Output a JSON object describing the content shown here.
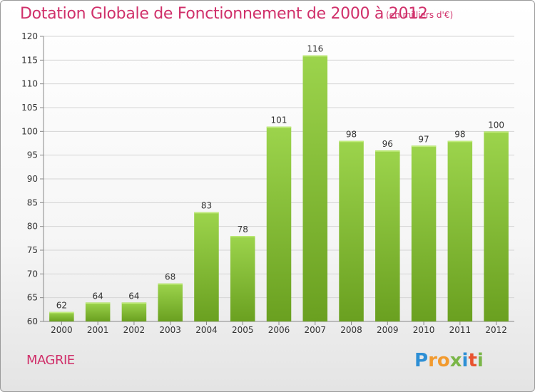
{
  "chart_data": {
    "type": "bar",
    "title": "Dotation Globale de Fonctionnement de 2000 à 2012",
    "subtitle": "(en milliers d'€)",
    "categories": [
      "2000",
      "2001",
      "2002",
      "2003",
      "2004",
      "2005",
      "2006",
      "2007",
      "2008",
      "2009",
      "2010",
      "2011",
      "2012"
    ],
    "values": [
      62,
      64,
      64,
      68,
      83,
      78,
      101,
      116,
      98,
      96,
      97,
      98,
      100
    ],
    "xlabel": "",
    "ylabel": "",
    "ylim": [
      60,
      120
    ],
    "yticks": [
      60,
      65,
      70,
      75,
      80,
      85,
      90,
      95,
      100,
      105,
      110,
      115,
      120
    ],
    "grid": true,
    "bar_color": "#8cc43c",
    "bar_color_dark": "#6aa020",
    "text_color": "#d0306a"
  },
  "commune": "MAGRIE",
  "logo": {
    "letters": [
      "P",
      "r",
      "o",
      "x",
      "i",
      "t",
      "i"
    ],
    "colors": [
      "#2d8fd5",
      "#f29a2e",
      "#f29a2e",
      "#7ab648",
      "#2d8fd5",
      "#e8532f",
      "#7ab648"
    ]
  }
}
